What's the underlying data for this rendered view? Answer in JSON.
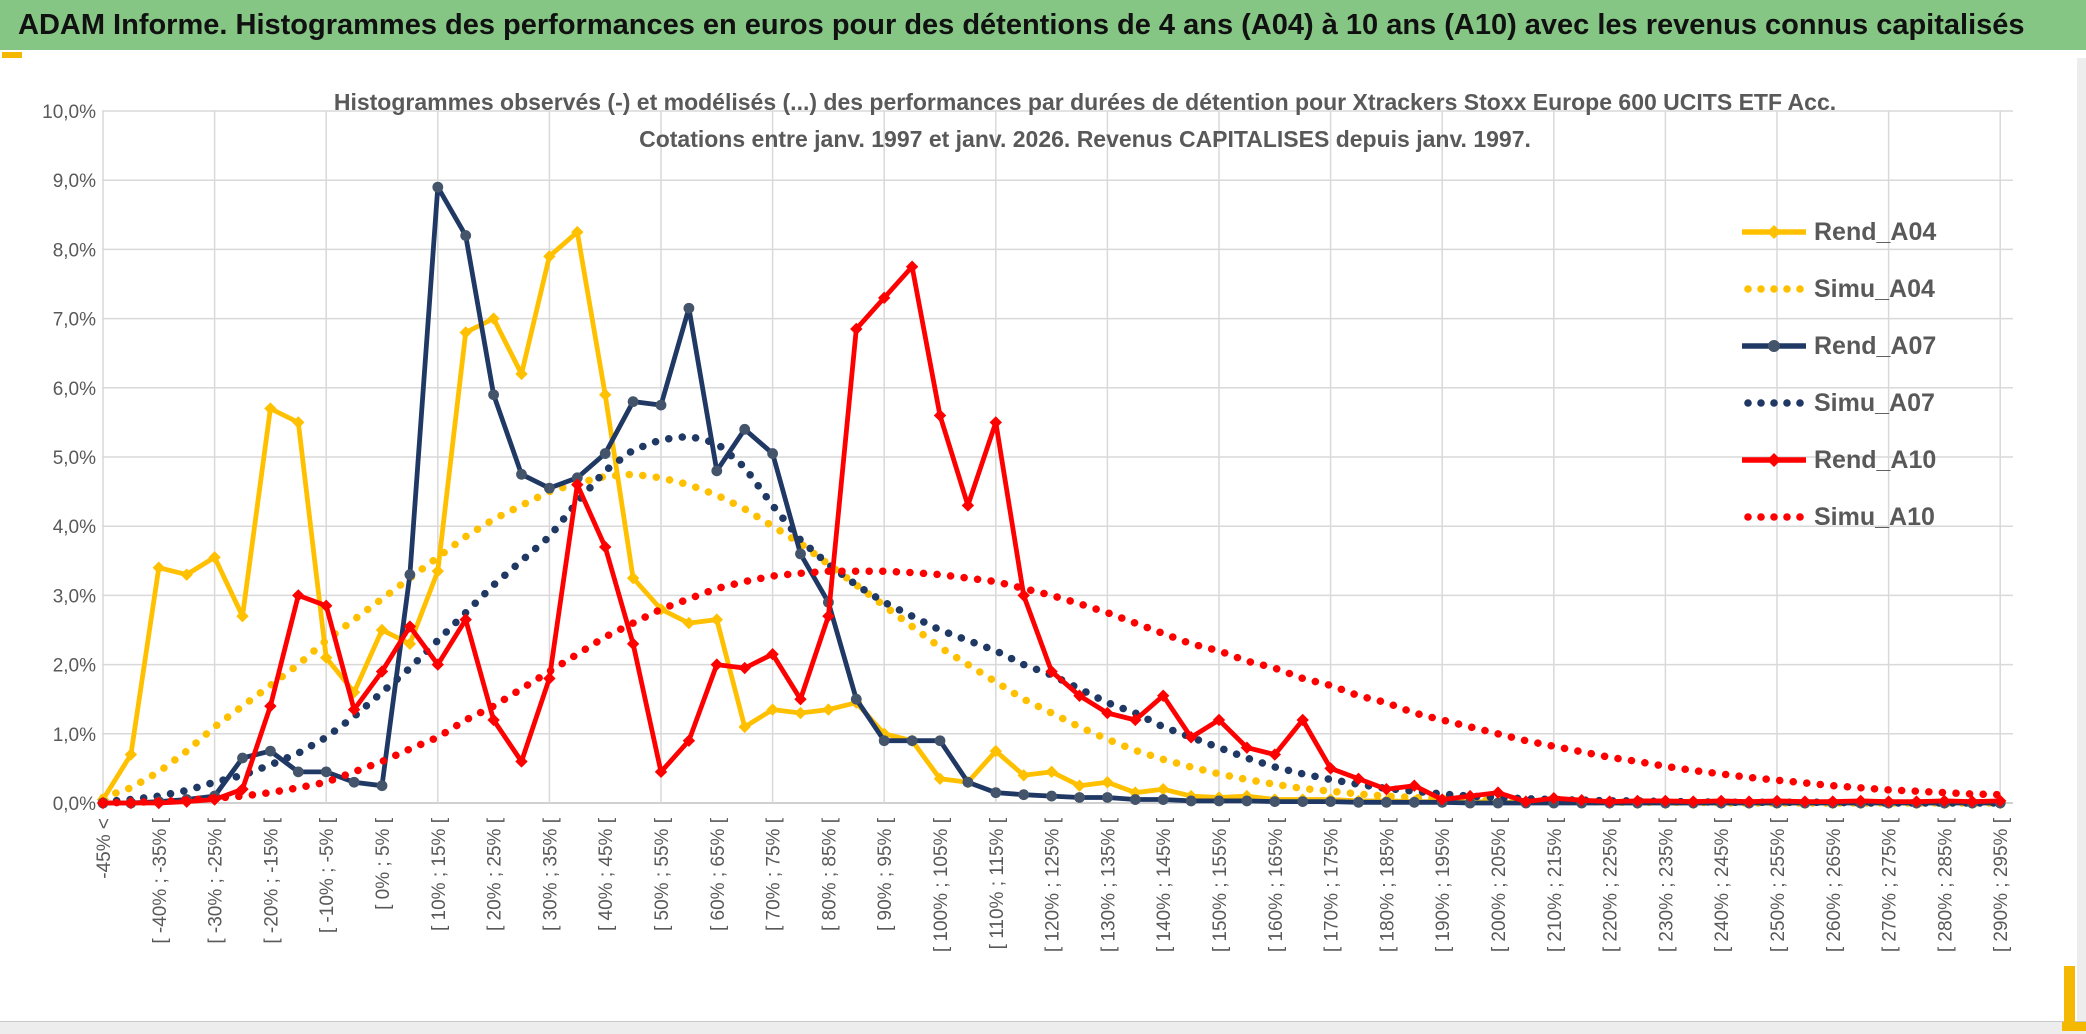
{
  "window": {
    "title": "ADAM Informe. Histogrammes des performances en euros pour des détentions de 4 ans (A04) à 10 ans (A10) avec les revenus connus capitalisés"
  },
  "colors": {
    "header_green": "#85C685",
    "header_text": "#111111",
    "accent_gold": "#F5B800",
    "text_gray": "#595959",
    "gridline": "#D9D9D9",
    "axis_line": "#C0C0C0",
    "chrome_gray": "#EDEDED",
    "series_gold": "#FFC000",
    "series_navy": "#1F3864",
    "navy_marker": "#44546A",
    "series_red": "#FF0000"
  },
  "chart_data": {
    "type": "line",
    "title_line1": "Histogrammes observés (-) et modélisés (...) des performances par durées de détention pour Xtrackers Stoxx Europe 600 UCITS ETF Acc.",
    "title_line2": "Cotations entre janv. 1997 et janv. 2026. Revenus CAPITALISES depuis janv. 1997.",
    "ylim": [
      0,
      10
    ],
    "grid": true,
    "legend_position": "right-top",
    "ytick_labels": [
      "0,0%",
      "1,0%",
      "2,0%",
      "3,0%",
      "4,0%",
      "5,0%",
      "6,0%",
      "7,0%",
      "8,0%",
      "9,0%",
      "10,0%"
    ],
    "categories": [
      "-45% <",
      "[ -40% ; -35% [",
      "[ -30% ; -25% [",
      "[ -20% ; -15% [",
      "[ -10% ; -5% [",
      "[ 0% ; 5% [",
      "[ 10% ; 15% [",
      "[ 20% ; 25% [",
      "[ 30% ; 35% [",
      "[ 40% ; 45% [",
      "[ 50% ; 55% [",
      "[ 60% ; 65% [",
      "[ 70% ; 75% [",
      "[ 80% ; 85% [",
      "[ 90% ; 95% [",
      "[ 100% ; 105% [",
      "[ 110% ; 115% [",
      "[ 120% ; 125% [",
      "[ 130% ; 135% [",
      "[ 140% ; 145% [",
      "[ 150% ; 155% [",
      "[ 160% ; 165% [",
      "[ 170% ; 175% [",
      "[ 180% ; 185% [",
      "[ 190% ; 195% [",
      "[ 200% ; 205% [",
      "[ 210% ; 215% [",
      "[ 220% ; 225% [",
      "[ 230% ; 235% [",
      "[ 240% ; 245% [",
      "[ 250% ; 255% [",
      "[ 260% ; 265% [",
      "[ 270% ; 275% [",
      "[ 280% ; 285% [",
      "[ 290% ; 295% ["
    ],
    "label_every": 2,
    "bin_width_pct": 5,
    "series": [
      {
        "name": "Rend_A04",
        "color": "#FFC000",
        "style": "solid",
        "marker": "diamond",
        "marker_color": "#FFC000",
        "values": [
          0.05,
          0.7,
          3.4,
          3.3,
          3.55,
          2.7,
          5.7,
          5.5,
          2.1,
          1.6,
          2.5,
          2.3,
          3.35,
          6.8,
          7.0,
          6.2,
          7.9,
          8.25,
          5.9,
          3.25,
          2.8,
          2.6,
          2.65,
          1.1,
          1.35,
          1.3,
          1.35,
          1.45,
          1.0,
          0.9,
          0.35,
          0.3,
          0.75,
          0.4,
          0.45,
          0.25,
          0.3,
          0.15,
          0.2,
          0.1,
          0.08,
          0.1,
          0.05,
          0.05,
          0.05,
          0.03,
          0.03,
          0.02,
          0.02,
          0.02,
          0.01,
          0.01,
          0.01,
          0.01,
          0,
          0,
          0,
          0,
          0,
          0,
          0,
          0,
          0,
          0,
          0,
          0,
          0,
          0,
          0
        ]
      },
      {
        "name": "Simu_A04",
        "color": "#FFC000",
        "style": "dotted",
        "values": [
          0.08,
          0.22,
          0.45,
          0.75,
          1.1,
          1.4,
          1.7,
          2.0,
          2.35,
          2.65,
          2.95,
          3.25,
          3.55,
          3.85,
          4.1,
          4.3,
          4.5,
          4.62,
          4.72,
          4.75,
          4.7,
          4.6,
          4.45,
          4.25,
          4.0,
          3.75,
          3.45,
          3.15,
          2.85,
          2.55,
          2.25,
          2.0,
          1.75,
          1.5,
          1.3,
          1.1,
          0.92,
          0.76,
          0.63,
          0.52,
          0.42,
          0.34,
          0.27,
          0.21,
          0.17,
          0.13,
          0.1,
          0.08,
          0.06,
          0.05,
          0.04,
          0.03,
          0.02,
          0.02,
          0.01,
          0.01,
          0.01,
          0.01,
          0,
          0,
          0,
          0,
          0,
          0,
          0,
          0,
          0,
          0,
          0
        ]
      },
      {
        "name": "Rend_A07",
        "color": "#1F3864",
        "style": "solid",
        "marker": "circle",
        "marker_color": "#44546A",
        "values": [
          0,
          0,
          0.02,
          0.05,
          0.1,
          0.65,
          0.75,
          0.45,
          0.45,
          0.3,
          0.25,
          3.3,
          8.9,
          8.2,
          5.9,
          4.75,
          4.55,
          4.7,
          5.05,
          5.8,
          5.75,
          7.15,
          4.8,
          5.4,
          5.05,
          3.6,
          2.9,
          1.5,
          0.9,
          0.9,
          0.9,
          0.3,
          0.15,
          0.12,
          0.1,
          0.08,
          0.08,
          0.05,
          0.05,
          0.03,
          0.03,
          0.03,
          0.02,
          0.02,
          0.02,
          0.01,
          0.01,
          0.01,
          0.01,
          0,
          0,
          0,
          0,
          0,
          0,
          0,
          0,
          0,
          0,
          0,
          0,
          0,
          0,
          0,
          0,
          0,
          0,
          0,
          0
        ]
      },
      {
        "name": "Simu_A07",
        "color": "#1F3864",
        "style": "dotted",
        "values": [
          0.02,
          0.05,
          0.1,
          0.18,
          0.3,
          0.4,
          0.55,
          0.72,
          0.95,
          1.25,
          1.6,
          1.95,
          2.35,
          2.75,
          3.15,
          3.5,
          3.85,
          4.35,
          4.8,
          5.1,
          5.25,
          5.3,
          5.2,
          4.85,
          4.3,
          3.8,
          3.45,
          3.15,
          2.9,
          2.7,
          2.5,
          2.35,
          2.2,
          2.0,
          1.85,
          1.65,
          1.45,
          1.3,
          1.1,
          0.95,
          0.8,
          0.65,
          0.52,
          0.42,
          0.34,
          0.27,
          0.21,
          0.17,
          0.13,
          0.1,
          0.08,
          0.06,
          0.05,
          0.04,
          0.03,
          0.03,
          0.02,
          0.02,
          0.01,
          0.01,
          0.01,
          0.01,
          0.01,
          0,
          0,
          0,
          0,
          0,
          0
        ]
      },
      {
        "name": "Rend_A10",
        "color": "#FF0000",
        "style": "solid",
        "marker": "diamond",
        "marker_color": "#FF0000",
        "values": [
          0,
          0,
          0,
          0.02,
          0.05,
          0.2,
          1.4,
          3.0,
          2.85,
          1.35,
          1.9,
          2.55,
          2.0,
          2.65,
          1.2,
          0.6,
          1.8,
          4.6,
          3.7,
          2.3,
          0.45,
          0.9,
          2.0,
          1.95,
          2.15,
          1.5,
          2.7,
          6.85,
          7.3,
          7.75,
          5.6,
          4.3,
          5.5,
          3.0,
          1.9,
          1.55,
          1.3,
          1.2,
          1.55,
          0.95,
          1.2,
          0.8,
          0.7,
          1.2,
          0.5,
          0.35,
          0.2,
          0.25,
          0.05,
          0.1,
          0.15,
          0.02,
          0.07,
          0.04,
          0.02,
          0.03,
          0.03,
          0.02,
          0.03,
          0.02,
          0.03,
          0.02,
          0.02,
          0.03,
          0.02,
          0.02,
          0.03,
          0.02,
          0.03
        ]
      },
      {
        "name": "Simu_A10",
        "color": "#FF0000",
        "style": "dotted",
        "values": [
          0,
          0.01,
          0.02,
          0.04,
          0.07,
          0.1,
          0.15,
          0.22,
          0.3,
          0.45,
          0.6,
          0.78,
          0.95,
          1.2,
          1.4,
          1.65,
          1.9,
          2.15,
          2.4,
          2.6,
          2.8,
          2.95,
          3.1,
          3.2,
          3.28,
          3.32,
          3.35,
          3.35,
          3.35,
          3.33,
          3.3,
          3.25,
          3.2,
          3.1,
          3.0,
          2.88,
          2.75,
          2.6,
          2.45,
          2.3,
          2.2,
          2.05,
          1.95,
          1.8,
          1.7,
          1.55,
          1.45,
          1.3,
          1.2,
          1.1,
          1.0,
          0.9,
          0.82,
          0.74,
          0.66,
          0.6,
          0.53,
          0.47,
          0.42,
          0.37,
          0.33,
          0.29,
          0.25,
          0.22,
          0.19,
          0.17,
          0.15,
          0.13,
          0.12
        ]
      }
    ]
  }
}
